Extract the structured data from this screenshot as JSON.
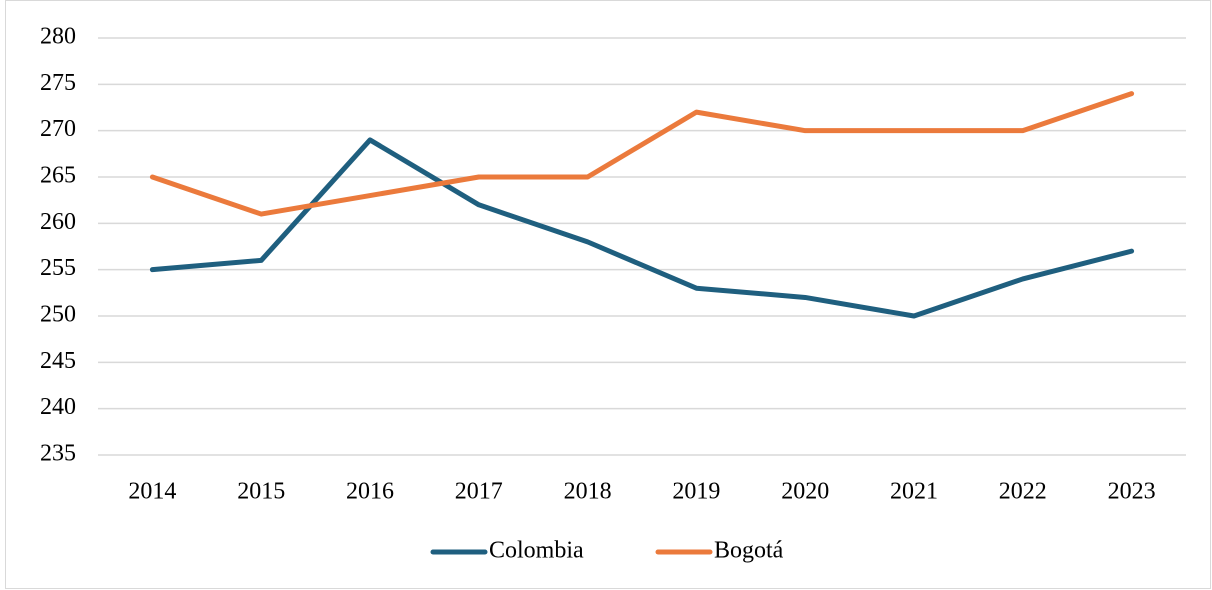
{
  "chart_data": {
    "type": "line",
    "categories": [
      "2014",
      "2015",
      "2016",
      "2017",
      "2018",
      "2019",
      "2020",
      "2021",
      "2022",
      "2023"
    ],
    "series": [
      {
        "name": "Colombia",
        "color": "#1f5f7f",
        "values": [
          255,
          256,
          269,
          262,
          258,
          253,
          252,
          250,
          254,
          257
        ]
      },
      {
        "name": "Bogotá",
        "color": "#eb7a3c",
        "values": [
          265,
          261,
          263,
          265,
          265,
          272,
          270,
          270,
          270,
          274
        ]
      }
    ],
    "ylim": [
      235,
      280
    ],
    "yticks": [
      235,
      240,
      245,
      250,
      255,
      260,
      265,
      270,
      275,
      280
    ],
    "grid": true,
    "legend": "bottom"
  }
}
